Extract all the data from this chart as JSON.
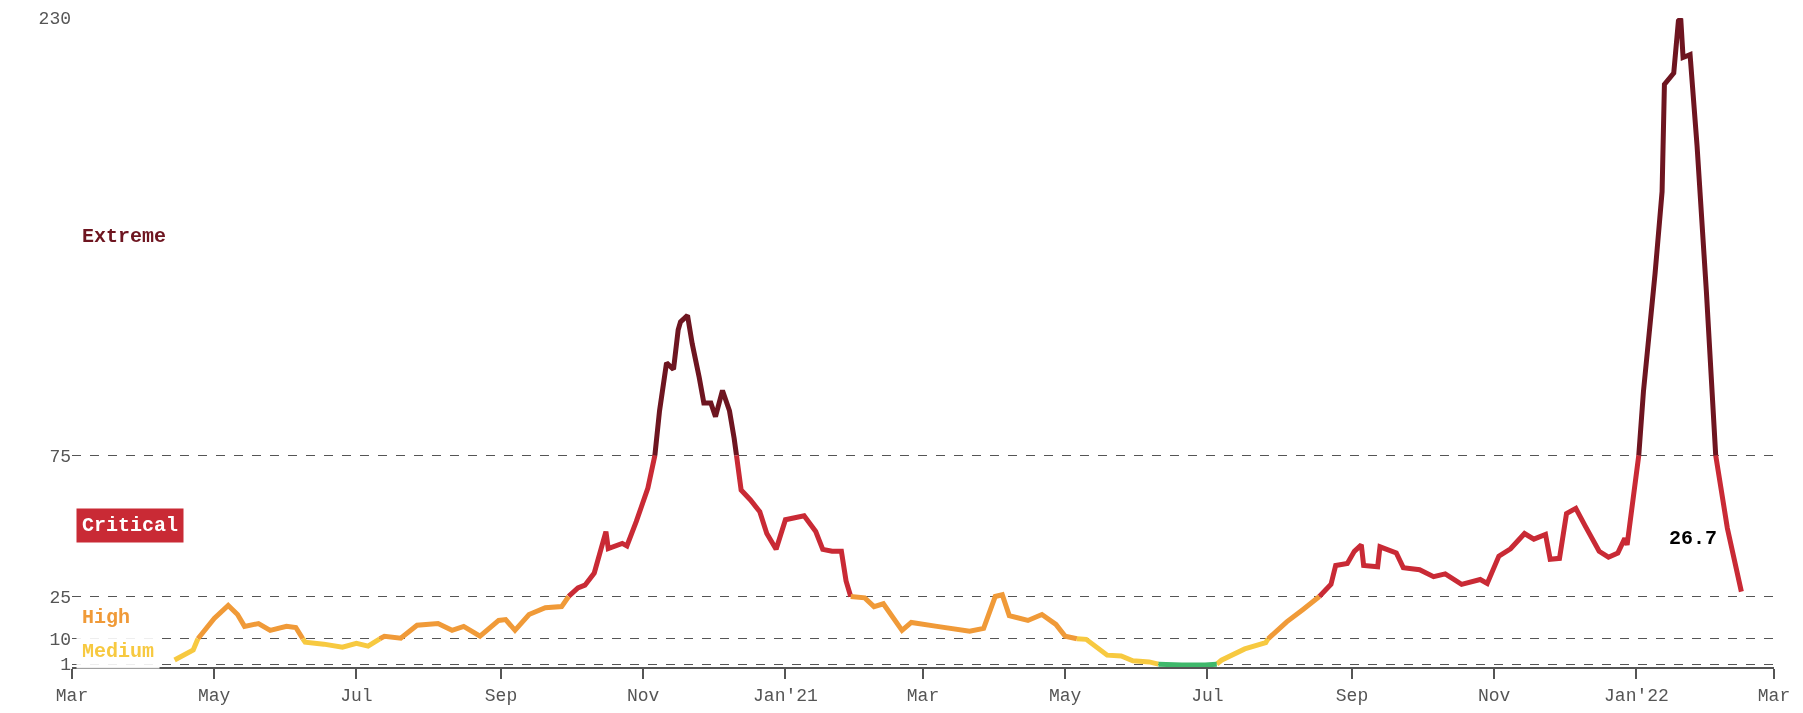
{
  "chart_data": {
    "type": "line",
    "xlim": [
      "2020-03-01",
      "2022-03-01"
    ],
    "xticks": [
      {
        "value": "2020-03-01",
        "label": "Mar"
      },
      {
        "value": "2020-05-01",
        "label": "May"
      },
      {
        "value": "2020-07-01",
        "label": "Jul"
      },
      {
        "value": "2020-09-01",
        "label": "Sep"
      },
      {
        "value": "2020-11-01",
        "label": "Nov"
      },
      {
        "value": "2021-01-01",
        "label": "Jan'21"
      },
      {
        "value": "2021-03-01",
        "label": "Mar"
      },
      {
        "value": "2021-05-01",
        "label": "May"
      },
      {
        "value": "2021-07-01",
        "label": "Jul"
      },
      {
        "value": "2021-09-01",
        "label": "Sep"
      },
      {
        "value": "2021-11-01",
        "label": "Nov"
      },
      {
        "value": "2022-01-01",
        "label": "Jan'22"
      },
      {
        "value": "2022-03-01",
        "label": "Mar"
      }
    ],
    "ylim": [
      0,
      230
    ],
    "yticks": [
      1,
      10,
      25,
      75,
      230
    ],
    "grid": "y",
    "series": [
      {
        "name": "Extreme",
        "color": "#6e1520",
        "x": [
          "2020-11-06",
          "2020-11-08",
          "2020-11-11",
          "2020-11-14",
          "2020-11-16",
          "2020-11-17",
          "2020-11-20",
          "2020-11-22",
          "2020-11-25",
          "2020-11-27",
          "2020-11-30",
          "2020-12-02",
          "2020-12-05",
          "2020-12-08",
          "2020-12-10",
          "2020-12-11",
          "2021-06-01",
          "2022-01-02",
          "2022-01-04",
          "2022-01-09",
          "2022-01-12",
          "2022-01-13",
          "2022-01-17",
          "2022-01-19",
          "2022-01-20",
          "2022-01-21",
          "2022-01-24",
          "2022-01-27",
          "2022-01-31",
          "2022-02-04"
        ],
        "values": [
          75,
          90.8,
          107.8,
          105.5,
          119.5,
          122.3,
          124.6,
          114.6,
          102.7,
          93.6,
          93.6,
          88.7,
          98,
          90.8,
          81,
          75,
          null,
          75,
          97.6,
          139.5,
          168.5,
          206.5,
          210.5,
          229,
          229.8,
          216,
          217,
          184.7,
          133,
          75
        ]
      },
      {
        "name": "Critical",
        "color": "#c92a35",
        "x": [
          "2020-09-30",
          "2020-10-04",
          "2020-10-07",
          "2020-10-11",
          "2020-10-16",
          "2020-10-17",
          "2020-10-23",
          "2020-10-25",
          "2020-10-29",
          "2020-11-03",
          "2020-11-06",
          "2020-11-20",
          "2020-12-11",
          "2020-12-13",
          "2020-12-17",
          "2020-12-21",
          "2020-12-24",
          "2020-12-28",
          "2021-01-01",
          "2021-01-05",
          "2021-01-09",
          "2021-01-14",
          "2021-01-17",
          "2021-01-21",
          "2021-01-25",
          "2021-01-27",
          "2021-01-29",
          "2021-06-01",
          "2021-08-18",
          "2021-08-23",
          "2021-08-25",
          "2021-08-30",
          "2021-09-02",
          "2021-09-05",
          "2021-09-06",
          "2021-09-12",
          "2021-09-13",
          "2021-09-20",
          "2021-09-23",
          "2021-09-30",
          "2021-10-06",
          "2021-10-11",
          "2021-10-18",
          "2021-10-26",
          "2021-10-29",
          "2021-11-03",
          "2021-11-08",
          "2021-11-14",
          "2021-11-18",
          "2021-11-23",
          "2021-11-25",
          "2021-11-29",
          "2021-12-02",
          "2021-12-06",
          "2021-12-10",
          "2021-12-16",
          "2021-12-20",
          "2021-12-24",
          "2021-12-27",
          "2021-12-28",
          "2022-01-02",
          "2022-01-20",
          "2022-02-04",
          "2022-02-09",
          "2022-02-15"
        ],
        "values": [
          25,
          28,
          29,
          33.3,
          48,
          42,
          43.8,
          42.9,
          51.5,
          63.4,
          75,
          null,
          75,
          62.7,
          59.2,
          55,
          47.3,
          41.7,
          52.2,
          52.9,
          53.6,
          48,
          41.7,
          41,
          41,
          30.5,
          25,
          null,
          25,
          29.3,
          36,
          36.7,
          41,
          43.3,
          36,
          35.5,
          42.6,
          40.4,
          35.2,
          34.5,
          32,
          33,
          29.3,
          31,
          29.6,
          39.3,
          41.9,
          47.3,
          45.3,
          47,
          38.2,
          38.5,
          54.4,
          56.2,
          50,
          41,
          38.9,
          40.4,
          45.6,
          43.3,
          75,
          null,
          75,
          49.2,
          26.7
        ]
      },
      {
        "name": "High",
        "color": "#f09a38",
        "x": [
          "2020-04-24",
          "2020-05-01",
          "2020-05-07",
          "2020-05-11",
          "2020-05-14",
          "2020-05-20",
          "2020-05-25",
          "2020-06-01",
          "2020-06-05",
          "2020-06-08",
          "2020-06-20",
          "2020-07-11",
          "2020-07-13",
          "2020-07-20",
          "2020-07-27",
          "2020-08-05",
          "2020-08-11",
          "2020-08-16",
          "2020-08-23",
          "2020-08-31",
          "2020-09-03",
          "2020-09-07",
          "2020-09-13",
          "2020-09-20",
          "2020-09-27",
          "2020-09-30",
          "2020-12-01",
          "2021-01-29",
          "2021-02-04",
          "2021-02-08",
          "2021-02-12",
          "2021-02-20",
          "2021-02-24",
          "2021-03-07",
          "2021-03-21",
          "2021-03-27",
          "2021-04-01",
          "2021-04-04",
          "2021-04-07",
          "2021-04-15",
          "2021-04-21",
          "2021-04-27",
          "2021-05-01",
          "2021-05-06",
          "2021-06-01",
          "2021-07-27",
          "2021-08-04",
          "2021-08-11",
          "2021-08-18"
        ],
        "values": [
          10,
          17.2,
          21.8,
          18.6,
          14.4,
          15.4,
          13,
          14.4,
          14,
          10,
          null,
          10,
          10.9,
          10.2,
          14.8,
          15.4,
          13,
          14.4,
          10.9,
          16.5,
          16.8,
          13,
          18.6,
          21,
          21.4,
          25,
          null,
          25,
          24.5,
          21.4,
          22.4,
          13,
          15.8,
          14.4,
          12.7,
          13.7,
          25,
          25.6,
          18.2,
          16.5,
          18.6,
          15.1,
          10.9,
          10,
          null,
          10,
          16,
          20.4,
          25
        ]
      },
      {
        "name": "Medium",
        "color": "#f7c940",
        "x": [
          "2020-04-14",
          "2020-04-22",
          "2020-04-24",
          "2020-05-15",
          "2020-06-08",
          "2020-06-09",
          "2020-06-17",
          "2020-06-25",
          "2020-07-01",
          "2020-07-06",
          "2020-07-11",
          "2021-01-01",
          "2021-05-06",
          "2021-05-10",
          "2021-05-19",
          "2021-05-25",
          "2021-05-30",
          "2021-06-06",
          "2021-06-10",
          "2021-06-20",
          "2021-07-05",
          "2021-07-07",
          "2021-07-17",
          "2021-07-26",
          "2021-07-27"
        ],
        "values": [
          2.5,
          6,
          10,
          null,
          10,
          8.8,
          8.1,
          7,
          8.4,
          7.4,
          10,
          null,
          10,
          9.8,
          4.2,
          3.9,
          2.2,
          1.8,
          1,
          null,
          1,
          2.4,
          6.4,
          8.6,
          10
        ]
      },
      {
        "color": "#3fb86b",
        "x": [
          "2021-06-10",
          "2021-06-20",
          "2021-06-30",
          "2021-07-05"
        ],
        "values": [
          1,
          0.7,
          0.7,
          1
        ]
      }
    ],
    "annotations": [
      {
        "text": "26.7",
        "x": "2022-02-15",
        "y": 26.7
      }
    ]
  }
}
